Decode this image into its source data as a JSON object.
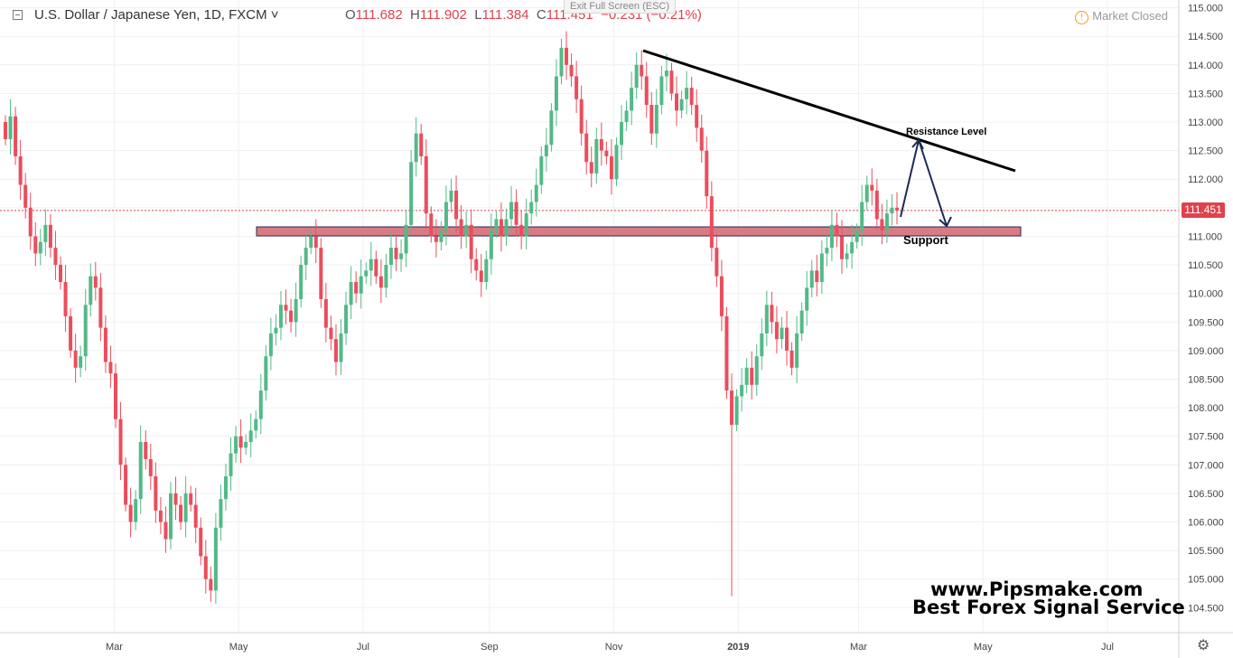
{
  "header": {
    "symbol": "U.S. Dollar / Japanese Yen, 1D, FXCM",
    "open_label": "O",
    "open": "111.682",
    "high_label": "H",
    "high": "111.902",
    "low_label": "L",
    "low": "111.384",
    "close_label": "C",
    "close": "111.451",
    "change": "−0.231 (−0.21%)",
    "exit_fullscreen": "Exit Full Screen (ESC)",
    "market_status": "Market Closed",
    "warn_glyph": "!",
    "dropdown_glyph": "˅"
  },
  "price_tag": "111.451",
  "annotations": {
    "resistance": "Resistance Level",
    "support": "Support"
  },
  "branding": {
    "line1": "www.Pipsmake.com",
    "line2": "Best Forex Signal Service"
  },
  "colors": {
    "up": "#53b987",
    "down": "#eb4d5c",
    "support_zone": "#d97b83",
    "price_line": "#e0424d"
  },
  "chart_data": {
    "type": "candlestick",
    "ylim": [
      104.3,
      115.0
    ],
    "y_ticks": [
      "115.000",
      "114.500",
      "114.000",
      "113.500",
      "113.000",
      "112.500",
      "112.000",
      "111.500",
      "111.000",
      "110.500",
      "110.000",
      "109.500",
      "109.000",
      "108.500",
      "108.000",
      "107.500",
      "107.000",
      "106.500",
      "106.000",
      "105.500",
      "105.000",
      "104.500"
    ],
    "x_ticks": [
      "Mar",
      "May",
      "Jul",
      "Sep",
      "Nov",
      "2019",
      "Mar",
      "May",
      "Jul"
    ],
    "x_range": [
      "2018-01-04",
      "2019-08-05"
    ],
    "x_tick_dates": [
      "2018-03-01",
      "2018-05-01",
      "2018-07-01",
      "2018-09-01",
      "2018-11-01",
      "2019-01-01",
      "2019-03-01",
      "2019-05-01",
      "2019-07-01"
    ],
    "last_price": 111.451,
    "closes": [
      112.7,
      113.1,
      112.4,
      111.9,
      111.5,
      111.0,
      110.7,
      110.9,
      111.2,
      110.8,
      110.5,
      110.2,
      109.6,
      109.0,
      108.7,
      108.9,
      109.8,
      110.3,
      110.1,
      109.4,
      108.8,
      108.6,
      107.8,
      107.0,
      106.3,
      106.0,
      106.4,
      107.4,
      107.1,
      106.8,
      106.2,
      106.0,
      105.7,
      106.5,
      106.3,
      106.0,
      106.5,
      106.3,
      105.9,
      105.4,
      105.0,
      104.8,
      105.9,
      106.4,
      106.8,
      107.2,
      107.5,
      107.3,
      107.4,
      107.6,
      107.8,
      108.3,
      108.9,
      109.3,
      109.4,
      109.8,
      109.7,
      109.5,
      109.9,
      110.5,
      110.8,
      111.0,
      110.8,
      109.9,
      109.4,
      109.2,
      108.8,
      109.3,
      109.8,
      110.2,
      110.0,
      110.3,
      110.4,
      110.6,
      110.3,
      110.1,
      110.5,
      110.8,
      110.6,
      110.7,
      111.2,
      112.3,
      112.8,
      112.4,
      111.4,
      111.0,
      110.9,
      111.1,
      111.6,
      111.8,
      111.3,
      111.0,
      111.2,
      110.6,
      110.4,
      110.2,
      110.6,
      111.1,
      111.3,
      111.0,
      111.3,
      111.6,
      111.2,
      111.0,
      111.4,
      111.6,
      111.9,
      112.4,
      112.6,
      113.2,
      113.8,
      114.3,
      114.0,
      113.8,
      113.4,
      112.8,
      112.3,
      112.1,
      112.7,
      112.5,
      112.4,
      112.0,
      112.6,
      113.0,
      113.2,
      113.6,
      114.0,
      113.8,
      113.3,
      112.8,
      113.3,
      113.8,
      113.9,
      113.5,
      113.2,
      113.4,
      113.6,
      113.3,
      112.9,
      112.5,
      111.7,
      110.8,
      110.3,
      109.6,
      108.3,
      107.7,
      108.2,
      108.4,
      108.7,
      108.4,
      108.9,
      109.3,
      109.8,
      109.5,
      109.2,
      109.4,
      109.0,
      108.7,
      109.3,
      109.7,
      110.1,
      110.4,
      110.2,
      110.7,
      110.8,
      111.2,
      111.0,
      110.6,
      110.7,
      110.9,
      111.1,
      111.6,
      111.9,
      111.8,
      111.3,
      111.1,
      111.4,
      111.5,
      111.451
    ]
  }
}
